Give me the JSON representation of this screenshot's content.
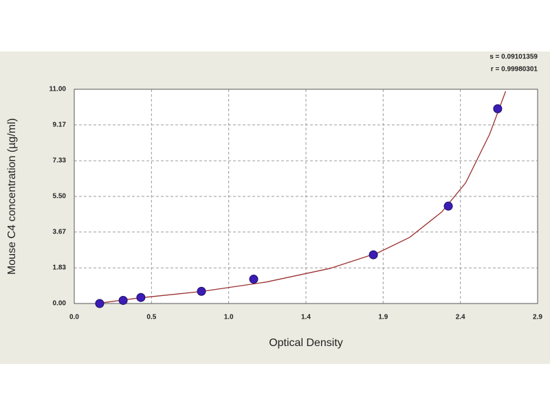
{
  "chart_data": {
    "type": "scatter",
    "x_label": "Optical Density",
    "y_label": "Mouse C4 concentration (µg/ml)",
    "annotations": [
      "s = 0.09101359",
      "r = 0.99980301"
    ],
    "series": [
      {
        "type": "scatter",
        "color": "#3b1db5",
        "x": [
          0.159,
          0.306,
          0.417,
          0.796,
          1.123,
          1.872,
          2.341,
          2.65
        ],
        "values": [
          0.0,
          0.16,
          0.31,
          0.625,
          1.25,
          2.5,
          5.0,
          10.0
        ]
      },
      {
        "type": "line",
        "color": "#9b2f2f",
        "x": [
          0.16,
          0.4,
          0.8,
          1.2,
          1.6,
          1.9,
          2.1,
          2.3,
          2.45,
          2.6,
          2.7
        ],
        "values": [
          0.02,
          0.28,
          0.62,
          1.1,
          1.8,
          2.6,
          3.4,
          4.7,
          6.2,
          8.7,
          10.9
        ]
      }
    ],
    "xlim": [
      0,
      2.9
    ],
    "ylim": [
      0,
      11
    ],
    "xticks": [
      {
        "value": 0,
        "label": "0.0"
      },
      {
        "value": 0.4833,
        "label": "0.5"
      },
      {
        "value": 0.9667,
        "label": "1.0"
      },
      {
        "value": 1.45,
        "label": "1.4"
      },
      {
        "value": 1.9333,
        "label": "1.9"
      },
      {
        "value": 2.4167,
        "label": "2.4"
      },
      2.9
    ],
    "yticks": [
      {
        "value": 0,
        "label": "0.00"
      },
      1.83,
      3.67,
      {
        "value": 5.5,
        "label": "5.50"
      },
      7.33,
      9.17,
      {
        "value": 11,
        "label": "11.00"
      }
    ],
    "grid": true
  }
}
